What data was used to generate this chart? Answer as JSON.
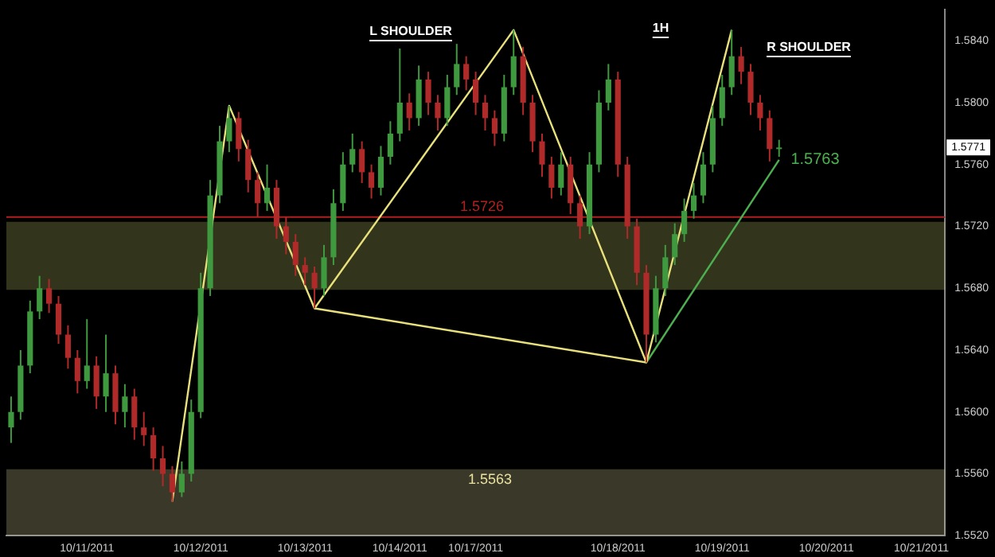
{
  "chart_data": {
    "type": "candlestick",
    "categories": [
      null,
      null,
      null,
      null,
      null,
      null,
      null,
      null,
      "10/11/2011",
      null,
      null,
      null,
      null,
      null,
      null,
      null,
      null,
      null,
      null,
      null,
      "10/12/2011",
      null,
      null,
      null,
      null,
      null,
      null,
      null,
      null,
      null,
      null,
      "10/13/2011",
      null,
      null,
      null,
      null,
      null,
      null,
      null,
      null,
      null,
      "10/14/2011",
      null,
      null,
      null,
      null,
      null,
      null,
      null,
      "10/17/2011",
      null,
      null,
      null,
      null,
      null,
      null,
      null,
      null,
      null,
      null,
      null,
      null,
      null,
      null,
      "10/18/2011",
      null,
      null,
      null,
      null,
      null,
      null,
      null,
      null,
      null,
      null,
      "10/19/2011",
      null,
      null,
      null,
      null,
      null,
      null,
      null,
      null,
      null,
      null,
      "10/20/2011",
      null,
      null,
      null,
      null,
      null,
      null,
      null,
      null,
      null,
      "10/21/2011",
      null,
      null
    ],
    "ohlc": [
      [
        1.559,
        1.561,
        1.558,
        1.56
      ],
      [
        1.56,
        1.564,
        1.5595,
        1.563
      ],
      [
        1.563,
        1.5672,
        1.5625,
        1.5665
      ],
      [
        1.5665,
        1.5688,
        1.566,
        1.568
      ],
      [
        1.568,
        1.5686,
        1.5664,
        1.567
      ],
      [
        1.567,
        1.5675,
        1.5644,
        1.565
      ],
      [
        1.565,
        1.5656,
        1.5628,
        1.5635
      ],
      [
        1.5635,
        1.564,
        1.5612,
        1.562
      ],
      [
        1.562,
        1.566,
        1.5615,
        1.563
      ],
      [
        1.563,
        1.5636,
        1.5602,
        1.561
      ],
      [
        1.561,
        1.565,
        1.56,
        1.5625
      ],
      [
        1.5625,
        1.563,
        1.5592,
        1.56
      ],
      [
        1.56,
        1.5618,
        1.559,
        1.561
      ],
      [
        1.561,
        1.5615,
        1.5582,
        1.559
      ],
      [
        1.559,
        1.56,
        1.5578,
        1.5585
      ],
      [
        1.5585,
        1.559,
        1.5562,
        1.557
      ],
      [
        1.557,
        1.5578,
        1.5552,
        1.556
      ],
      [
        1.556,
        1.5565,
        1.5542,
        1.5548
      ],
      [
        1.5548,
        1.5568,
        1.5545,
        1.556
      ],
      [
        1.556,
        1.5608,
        1.5555,
        1.56
      ],
      [
        1.56,
        1.569,
        1.5596,
        1.568
      ],
      [
        1.568,
        1.575,
        1.5675,
        1.574
      ],
      [
        1.574,
        1.5785,
        1.5735,
        1.5775
      ],
      [
        1.5775,
        1.5798,
        1.5768,
        1.579
      ],
      [
        1.579,
        1.5794,
        1.5762,
        1.577
      ],
      [
        1.577,
        1.5776,
        1.5742,
        1.575
      ],
      [
        1.575,
        1.5755,
        1.5726,
        1.5735
      ],
      [
        1.5735,
        1.576,
        1.573,
        1.5745
      ],
      [
        1.5745,
        1.575,
        1.5712,
        1.572
      ],
      [
        1.572,
        1.5726,
        1.5702,
        1.571
      ],
      [
        1.571,
        1.5715,
        1.5688,
        1.5695
      ],
      [
        1.5695,
        1.57,
        1.5682,
        1.569
      ],
      [
        1.569,
        1.5694,
        1.5667,
        1.568
      ],
      [
        1.568,
        1.5708,
        1.5675,
        1.57
      ],
      [
        1.57,
        1.5744,
        1.5695,
        1.5735
      ],
      [
        1.5735,
        1.5768,
        1.573,
        1.576
      ],
      [
        1.576,
        1.578,
        1.5755,
        1.577
      ],
      [
        1.577,
        1.5775,
        1.5748,
        1.5755
      ],
      [
        1.5755,
        1.576,
        1.5738,
        1.5745
      ],
      [
        1.5745,
        1.5772,
        1.574,
        1.5765
      ],
      [
        1.5765,
        1.5788,
        1.576,
        1.578
      ],
      [
        1.578,
        1.5835,
        1.5775,
        1.58
      ],
      [
        1.58,
        1.5806,
        1.5782,
        1.579
      ],
      [
        1.579,
        1.5824,
        1.5785,
        1.5815
      ],
      [
        1.5815,
        1.582,
        1.5792,
        1.58
      ],
      [
        1.58,
        1.5805,
        1.5782,
        1.579
      ],
      [
        1.579,
        1.5818,
        1.5785,
        1.581
      ],
      [
        1.581,
        1.5838,
        1.5805,
        1.5825
      ],
      [
        1.5825,
        1.583,
        1.5808,
        1.5815
      ],
      [
        1.5815,
        1.582,
        1.5792,
        1.58
      ],
      [
        1.58,
        1.5805,
        1.5782,
        1.579
      ],
      [
        1.579,
        1.5795,
        1.5772,
        1.578
      ],
      [
        1.578,
        1.5818,
        1.5775,
        1.581
      ],
      [
        1.581,
        1.5847,
        1.5805,
        1.583
      ],
      [
        1.583,
        1.5836,
        1.5792,
        1.58
      ],
      [
        1.58,
        1.5805,
        1.5768,
        1.5775
      ],
      [
        1.5775,
        1.578,
        1.5752,
        1.576
      ],
      [
        1.576,
        1.5765,
        1.5738,
        1.5745
      ],
      [
        1.5745,
        1.5768,
        1.574,
        1.576
      ],
      [
        1.576,
        1.5765,
        1.5728,
        1.5735
      ],
      [
        1.5735,
        1.574,
        1.5712,
        1.572
      ],
      [
        1.572,
        1.5768,
        1.5715,
        1.576
      ],
      [
        1.576,
        1.5808,
        1.5755,
        1.58
      ],
      [
        1.58,
        1.5825,
        1.5795,
        1.5815
      ],
      [
        1.5815,
        1.582,
        1.5752,
        1.576
      ],
      [
        1.576,
        1.5765,
        1.5712,
        1.572
      ],
      [
        1.572,
        1.5725,
        1.5682,
        1.569
      ],
      [
        1.569,
        1.5695,
        1.5632,
        1.565
      ],
      [
        1.565,
        1.5688,
        1.5645,
        1.568
      ],
      [
        1.568,
        1.5708,
        1.5675,
        1.57
      ],
      [
        1.57,
        1.5722,
        1.5695,
        1.5715
      ],
      [
        1.5715,
        1.5738,
        1.571,
        1.573
      ],
      [
        1.573,
        1.5748,
        1.5725,
        1.574
      ],
      [
        1.574,
        1.5768,
        1.5735,
        1.576
      ],
      [
        1.576,
        1.5798,
        1.5755,
        1.579
      ],
      [
        1.579,
        1.5818,
        1.5785,
        1.581
      ],
      [
        1.581,
        1.5847,
        1.5805,
        1.583
      ],
      [
        1.583,
        1.5836,
        1.5812,
        1.582
      ],
      [
        1.582,
        1.5825,
        1.5792,
        1.58
      ],
      [
        1.58,
        1.5805,
        1.5782,
        1.579
      ],
      [
        1.579,
        1.5795,
        1.5762,
        1.577
      ],
      [
        1.577,
        1.5776,
        1.5765,
        1.5771
      ],
      null,
      null,
      null,
      null,
      null,
      null,
      null,
      null,
      null,
      null,
      null,
      null,
      null,
      null,
      null,
      null,
      null
    ],
    "series": [
      {
        "type": "line",
        "color": "#e8e07a",
        "values": [
          null,
          null,
          null,
          null,
          null,
          null,
          null,
          null,
          null,
          null,
          null,
          null,
          null,
          null,
          null,
          null,
          null,
          1.5542,
          null,
          null,
          null,
          null,
          null,
          1.5798,
          null,
          null,
          null,
          null,
          null,
          null,
          null,
          null,
          1.5667,
          null,
          null,
          null,
          null,
          null,
          null,
          null,
          null,
          null,
          null,
          null,
          null,
          null,
          null,
          null,
          null,
          null,
          null,
          null,
          null,
          1.5847,
          null,
          null,
          null,
          null,
          null,
          null,
          null,
          null,
          null,
          null,
          null,
          null,
          null,
          1.5632,
          null,
          null,
          null,
          null,
          null,
          null,
          null,
          null,
          1.5847,
          null,
          null,
          null,
          null,
          null,
          null,
          null,
          null,
          null,
          null,
          null,
          null,
          null,
          null,
          null,
          null,
          null,
          null,
          null,
          null,
          null,
          null
        ]
      },
      {
        "type": "line",
        "color": "#e8e07a",
        "values": [
          null,
          null,
          null,
          null,
          null,
          null,
          null,
          null,
          null,
          null,
          null,
          null,
          null,
          null,
          null,
          null,
          null,
          null,
          null,
          null,
          null,
          null,
          null,
          null,
          null,
          null,
          null,
          null,
          null,
          null,
          null,
          null,
          1.5667,
          null,
          null,
          null,
          null,
          null,
          null,
          null,
          null,
          null,
          null,
          null,
          null,
          null,
          null,
          null,
          null,
          null,
          null,
          null,
          null,
          null,
          null,
          null,
          null,
          null,
          null,
          null,
          null,
          null,
          null,
          null,
          null,
          null,
          null,
          1.5632,
          null,
          null,
          null,
          null,
          null,
          null,
          null,
          null,
          null,
          null,
          null,
          null,
          null,
          null,
          null,
          null,
          null,
          null,
          null,
          null,
          null,
          null,
          null,
          null,
          null,
          null,
          null,
          null,
          null,
          null,
          null
        ]
      },
      {
        "type": "line",
        "color": "#4caf50",
        "values": [
          null,
          null,
          null,
          null,
          null,
          null,
          null,
          null,
          null,
          null,
          null,
          null,
          null,
          null,
          null,
          null,
          null,
          null,
          null,
          null,
          null,
          null,
          null,
          null,
          null,
          null,
          null,
          null,
          null,
          null,
          null,
          null,
          null,
          null,
          null,
          null,
          null,
          null,
          null,
          null,
          null,
          null,
          null,
          null,
          null,
          null,
          null,
          null,
          null,
          null,
          null,
          null,
          null,
          null,
          null,
          null,
          null,
          null,
          null,
          null,
          null,
          null,
          null,
          null,
          null,
          null,
          null,
          1.5632,
          null,
          null,
          null,
          null,
          null,
          null,
          null,
          null,
          null,
          null,
          null,
          null,
          null,
          1.5763,
          null,
          null,
          null,
          null,
          null,
          null,
          null,
          null,
          null,
          null,
          null,
          null,
          null,
          null,
          null,
          null,
          null
        ]
      }
    ],
    "ylim": [
      1.552,
      1.586
    ],
    "yticks": [
      {
        "value": 1.552,
        "label": "1.5520"
      },
      {
        "value": 1.556,
        "label": "1.5560"
      },
      {
        "value": 1.56,
        "label": "1.5600"
      },
      {
        "value": 1.564,
        "label": "1.5640"
      },
      {
        "value": 1.568,
        "label": "1.5680"
      },
      {
        "value": 1.572,
        "label": "1.5720"
      },
      {
        "value": 1.576,
        "label": "1.5760"
      },
      {
        "value": 1.58,
        "label": "1.5800"
      },
      {
        "value": 1.584,
        "label": "1.5840"
      }
    ],
    "ref_lines": [
      {
        "axis": "y",
        "value": 1.5726,
        "label": "1.5726",
        "color": "#b02020"
      }
    ],
    "bands": [
      {
        "axis": "y",
        "from": 1.5679,
        "to": 1.5723,
        "color": "#c8d070"
      },
      {
        "axis": "y",
        "from": 1.552,
        "to": 1.5563,
        "label": "1.5563",
        "color": "#e8e0a0"
      }
    ],
    "annotations": [
      "L SHOULDER",
      "1H",
      "R SHOULDER",
      "1.5763",
      {
        "text": "1.5771",
        "y": 1.5771
      }
    ],
    "marker": "none",
    "grid": false,
    "legend": false
  }
}
